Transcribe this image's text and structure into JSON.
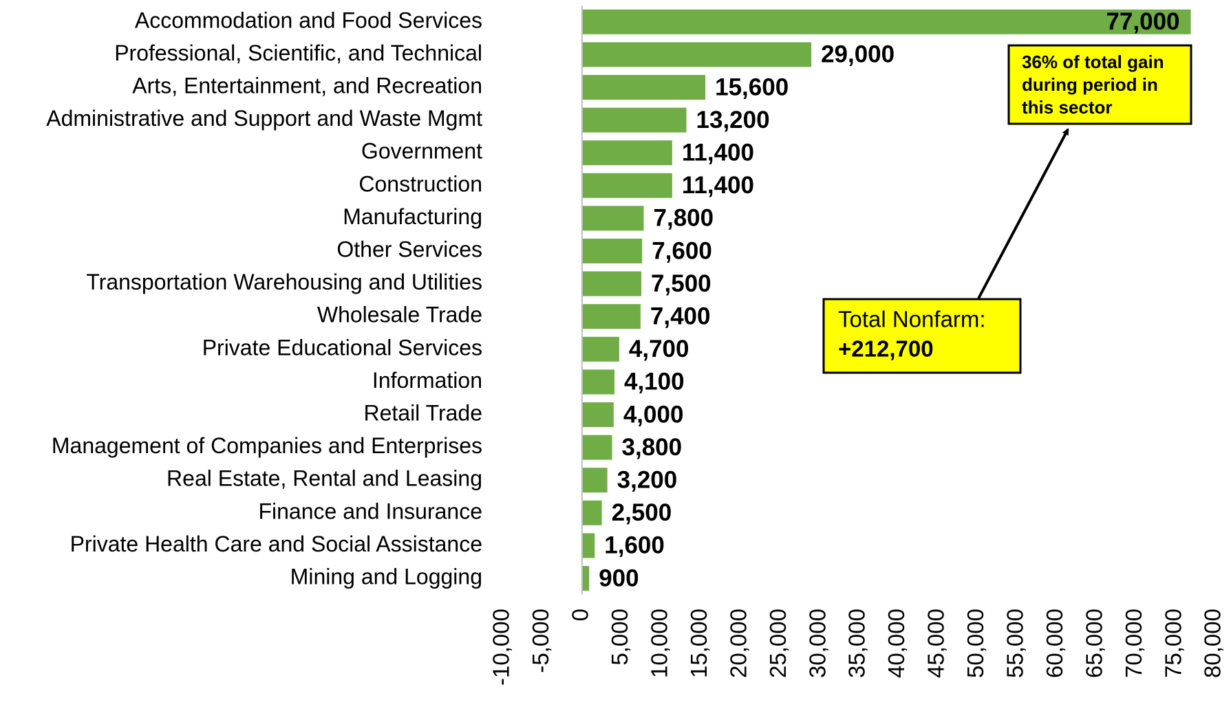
{
  "chart_data": {
    "type": "hbar",
    "categories": [
      "Accommodation and Food Services",
      "Professional, Scientific, and Technical",
      "Arts, Entertainment, and Recreation",
      "Administrative and Support and Waste Mgmt",
      "Government",
      "Construction",
      "Manufacturing",
      "Other Services",
      "Transportation Warehousing and Utilities",
      "Wholesale Trade",
      "Private Educational Services",
      "Information",
      "Retail Trade",
      "Management of Companies and Enterprises",
      "Real Estate, Rental and Leasing",
      "Finance and Insurance",
      "Private Health Care and Social Assistance",
      "Mining and Logging"
    ],
    "values": [
      77000,
      29000,
      15600,
      13200,
      11400,
      11400,
      7800,
      7600,
      7500,
      7400,
      4700,
      4100,
      4000,
      3800,
      3200,
      2500,
      1600,
      900
    ],
    "value_labels": [
      "77,000",
      "29,000",
      "15,600",
      "13,200",
      "11,400",
      "11,400",
      "7,800",
      "7,600",
      "7,500",
      "7,400",
      "4,700",
      "4,100",
      "4,000",
      "3,800",
      "3,200",
      "2,500",
      "1,600",
      "900"
    ],
    "color": "#70ad47",
    "xlim": [
      -10000,
      80000
    ],
    "xticks": [
      {
        "value": -10000,
        "label": "-10,000"
      },
      {
        "value": -5000,
        "label": "-5,000"
      },
      0,
      {
        "value": 5000,
        "label": "5,000"
      },
      {
        "value": 10000,
        "label": "10,000"
      },
      {
        "value": 15000,
        "label": "15,000"
      },
      {
        "value": 20000,
        "label": "20,000"
      },
      {
        "value": 25000,
        "label": "25,000"
      },
      {
        "value": 30000,
        "label": "30,000"
      },
      {
        "value": 35000,
        "label": "35,000"
      },
      {
        "value": 40000,
        "label": "40,000"
      },
      {
        "value": 45000,
        "label": "45,000"
      },
      {
        "value": 50000,
        "label": "50,000"
      },
      {
        "value": 55000,
        "label": "55,000"
      },
      {
        "value": 60000,
        "label": "60,000"
      },
      {
        "value": 65000,
        "label": "65,000"
      },
      {
        "value": 70000,
        "label": "70,000"
      },
      {
        "value": 75000,
        "label": "75,000"
      },
      {
        "value": 80000,
        "label": "80,000"
      }
    ],
    "grid": false,
    "annotations": [
      {
        "lines": [
          "36% of total gain",
          "during period in",
          "this sector"
        ]
      },
      {
        "lines": [
          "Total Nonfarm:",
          "+212,700"
        ]
      }
    ]
  }
}
